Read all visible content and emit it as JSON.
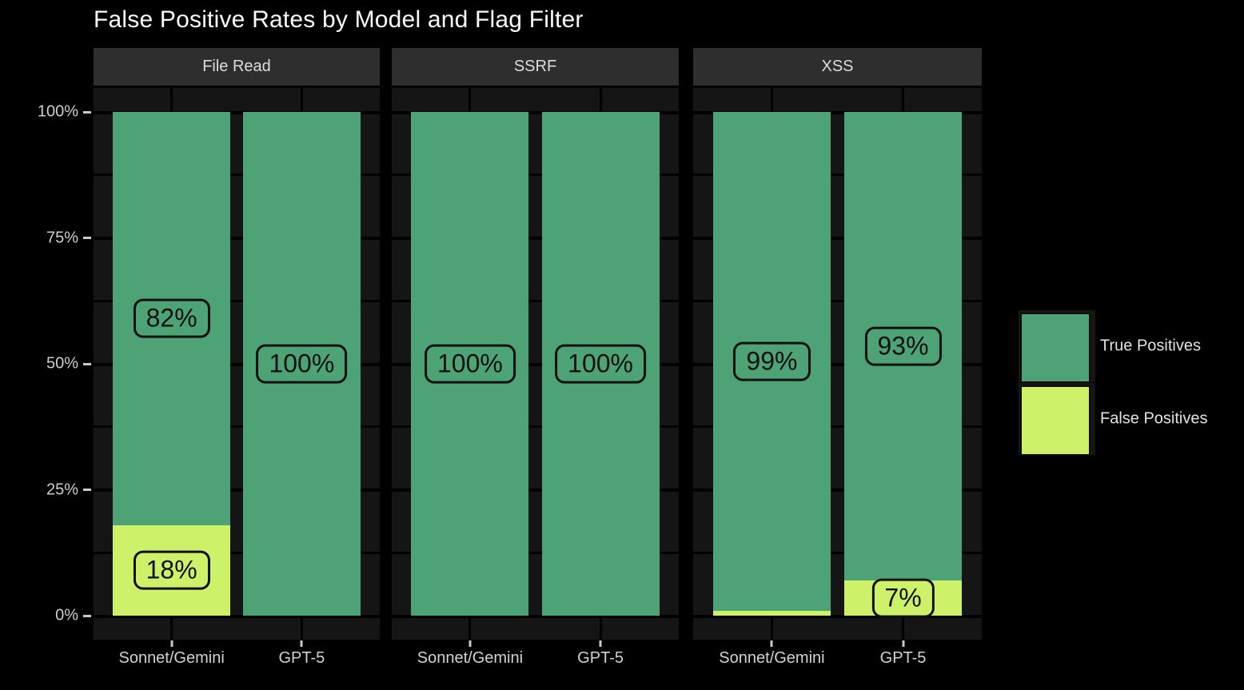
{
  "title": "False Positive Rates by Model and Flag Filter",
  "chart_data": {
    "type": "bar",
    "stacked": true,
    "faceted": true,
    "title": "False Positive Rates by Model and Flag Filter",
    "xlabel": "",
    "ylabel": "",
    "ylim": [
      0,
      100
    ],
    "grid": true,
    "legend_position": "right",
    "x_categories": [
      "Sonnet/Gemini",
      "GPT-5"
    ],
    "y_ticks": [
      {
        "value": 100,
        "label": "100%"
      },
      {
        "value": 75,
        "label": "75%"
      },
      {
        "value": 50,
        "label": "50%"
      },
      {
        "value": 25,
        "label": "25%"
      },
      {
        "value": 0,
        "label": "0%"
      }
    ],
    "facets": [
      {
        "label": "File Read",
        "bars": [
          {
            "model": "Sonnet/Gemini",
            "true_positives": 82,
            "false_positives": 18,
            "tp_label": "82%",
            "fp_label": "18%"
          },
          {
            "model": "GPT-5",
            "true_positives": 100,
            "false_positives": 0,
            "tp_label": "100%",
            "fp_label": ""
          }
        ]
      },
      {
        "label": "SSRF",
        "bars": [
          {
            "model": "Sonnet/Gemini",
            "true_positives": 100,
            "false_positives": 0,
            "tp_label": "100%",
            "fp_label": ""
          },
          {
            "model": "GPT-5",
            "true_positives": 100,
            "false_positives": 0,
            "tp_label": "100%",
            "fp_label": ""
          }
        ]
      },
      {
        "label": "XSS",
        "bars": [
          {
            "model": "Sonnet/Gemini",
            "true_positives": 99,
            "false_positives": 1,
            "tp_label": "99%",
            "fp_label": ""
          },
          {
            "model": "GPT-5",
            "true_positives": 93,
            "false_positives": 7,
            "tp_label": "93%",
            "fp_label": "7%"
          }
        ]
      }
    ],
    "legend": {
      "entries": [
        {
          "label": "True Positives",
          "color": "#4da376"
        },
        {
          "label": "False Positives",
          "color": "#cdf269"
        }
      ]
    }
  }
}
